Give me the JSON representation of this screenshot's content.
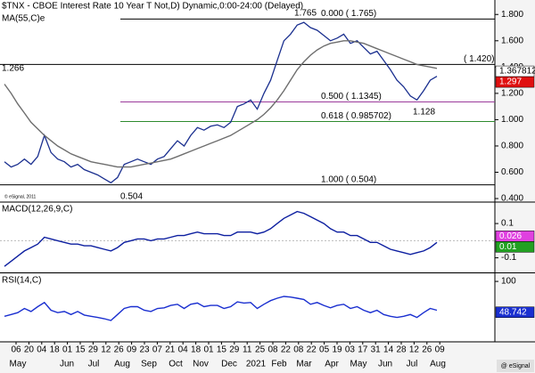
{
  "chart_data": [
    {
      "type": "line",
      "title": "$TNX - CBOE Interest Rate 10 Year T Not,D) Dynamic,0:00-24:00 (Delayed)",
      "series": [
        {
          "color": "#1a2f8f",
          "values": [
            0.68,
            0.64,
            0.66,
            0.7,
            0.66,
            0.72,
            0.88,
            0.75,
            0.7,
            0.68,
            0.64,
            0.66,
            0.62,
            0.6,
            0.58,
            0.55,
            0.52,
            0.56,
            0.66,
            0.68,
            0.7,
            0.68,
            0.66,
            0.7,
            0.72,
            0.78,
            0.84,
            0.8,
            0.88,
            0.94,
            0.92,
            0.95,
            0.96,
            0.94,
            0.98,
            1.1,
            1.12,
            1.15,
            1.08,
            1.2,
            1.3,
            1.45,
            1.6,
            1.65,
            1.72,
            1.74,
            1.7,
            1.68,
            1.64,
            1.6,
            1.62,
            1.65,
            1.58,
            1.6,
            1.55,
            1.5,
            1.52,
            1.45,
            1.38,
            1.3,
            1.25,
            1.18,
            1.15,
            1.22,
            1.3,
            1.33
          ]
        },
        {
          "name": "MA(55,C)e",
          "color": "#6e6e6e",
          "values": [
            1.27,
            1.2,
            1.12,
            1.05,
            0.98,
            0.93,
            0.88,
            0.84,
            0.8,
            0.77,
            0.74,
            0.72,
            0.7,
            0.68,
            0.67,
            0.66,
            0.65,
            0.64,
            0.64,
            0.64,
            0.65,
            0.66,
            0.67,
            0.68,
            0.69,
            0.7,
            0.72,
            0.74,
            0.76,
            0.78,
            0.8,
            0.82,
            0.84,
            0.86,
            0.88,
            0.91,
            0.94,
            0.97,
            1.0,
            1.04,
            1.09,
            1.15,
            1.22,
            1.3,
            1.38,
            1.44,
            1.49,
            1.53,
            1.56,
            1.58,
            1.59,
            1.6,
            1.6,
            1.59,
            1.58,
            1.56,
            1.54,
            1.52,
            1.5,
            1.48,
            1.46,
            1.44,
            1.42,
            1.41,
            1.4,
            1.39
          ]
        }
      ],
      "ylim": [
        0.38,
        1.91
      ],
      "yticks": [
        {
          "value": 1.8,
          "label": "1.800"
        },
        {
          "value": 1.6,
          "label": "1.600"
        },
        {
          "value": 1.4,
          "label": "1.400"
        },
        {
          "value": 1.2,
          "label": "1.200"
        },
        {
          "value": 1.0,
          "label": "1.000"
        },
        {
          "value": 0.8,
          "label": "0.800"
        },
        {
          "value": 0.6,
          "label": "0.600"
        },
        {
          "value": 0.4,
          "label": "0.400"
        }
      ],
      "levels": [
        {
          "value": 1.765,
          "label": "0.000 ( 1.765)",
          "color": "#000000"
        },
        {
          "value": 1.42,
          "label": "( 1.420)",
          "color": "#000000"
        },
        {
          "value": 1.1345,
          "label": "0.500 ( 1.1345)",
          "color": "#9b3a9b"
        },
        {
          "value": 0.985702,
          "label": "0.618 ( 0.985702)",
          "color": "#2e8b2e"
        },
        {
          "value": 0.504,
          "label": "1.000 ( 0.504)",
          "color": "#000000"
        }
      ],
      "annotations": [
        "1.266",
        "1.765",
        "1.128",
        "0.504"
      ],
      "value_tags": [
        {
          "value": 1.367812,
          "color": "#ffffff",
          "text_color": "#000000"
        },
        {
          "value": 1.297,
          "color": "#e01010",
          "text_color": "#ffffff"
        }
      ],
      "credit": "© eSignal, 2011"
    },
    {
      "type": "line",
      "title": "MACD(12,26,9,C)",
      "series": [
        {
          "color": "#0d1fa0",
          "values": [
            -0.15,
            -0.12,
            -0.09,
            -0.06,
            -0.04,
            -0.02,
            0.02,
            0.01,
            0.0,
            -0.01,
            -0.02,
            -0.02,
            -0.03,
            -0.03,
            -0.04,
            -0.05,
            -0.06,
            -0.04,
            -0.01,
            0.0,
            0.01,
            0.01,
            0.0,
            0.01,
            0.01,
            0.02,
            0.03,
            0.03,
            0.04,
            0.05,
            0.04,
            0.04,
            0.04,
            0.03,
            0.03,
            0.05,
            0.05,
            0.05,
            0.04,
            0.05,
            0.07,
            0.1,
            0.13,
            0.15,
            0.17,
            0.16,
            0.14,
            0.12,
            0.1,
            0.07,
            0.05,
            0.05,
            0.03,
            0.03,
            0.01,
            -0.01,
            -0.01,
            -0.03,
            -0.05,
            -0.06,
            -0.07,
            -0.08,
            -0.07,
            -0.06,
            -0.04,
            -0.01
          ]
        }
      ],
      "ylim": [
        -0.18,
        0.22
      ],
      "yticks": [
        0.1,
        -0.1
      ],
      "value_tags": [
        {
          "value": 0.026,
          "color": "#e040e0",
          "text_color": "#ffffff"
        },
        {
          "value": 0.01,
          "color": "#22a022",
          "text_color": "#ffffff"
        }
      ]
    },
    {
      "type": "line",
      "title": "RSI(14,C)",
      "series": [
        {
          "color": "#1a2fd0",
          "values": [
            42,
            45,
            48,
            55,
            50,
            58,
            65,
            52,
            48,
            50,
            45,
            50,
            44,
            42,
            40,
            38,
            35,
            45,
            55,
            58,
            58,
            52,
            50,
            55,
            56,
            60,
            62,
            55,
            62,
            64,
            58,
            60,
            60,
            55,
            58,
            66,
            64,
            65,
            55,
            62,
            68,
            72,
            75,
            74,
            72,
            70,
            62,
            65,
            60,
            56,
            60,
            62,
            55,
            58,
            52,
            48,
            52,
            45,
            42,
            40,
            42,
            45,
            40,
            48,
            55,
            52
          ]
        }
      ],
      "ylim": [
        1,
        112
      ],
      "yticks": [
        100
      ],
      "value_tags": [
        {
          "value": 48.742,
          "color": "#1a2fd0",
          "text_color": "#ffffff"
        }
      ]
    }
  ],
  "time_axis": {
    "days": [
      "06",
      "20",
      "04",
      "18",
      "01",
      "15",
      "29",
      "12",
      "26",
      "09",
      "23",
      "07",
      "21",
      "04",
      "18",
      "01",
      "15",
      "29",
      "11",
      "25",
      "08",
      "22",
      "08",
      "22",
      "05",
      "19",
      "03",
      "17",
      "31",
      "14",
      "28",
      "12",
      "26",
      "09"
    ],
    "months": [
      "May",
      "Jun",
      "Jul",
      "Aug",
      "Sep",
      "Oct",
      "Nov",
      "Dec",
      "2021",
      "Feb",
      "Mar",
      "Apr",
      "May",
      "Jun",
      "Jul",
      "Aug"
    ],
    "credit": "@ eSignal"
  }
}
